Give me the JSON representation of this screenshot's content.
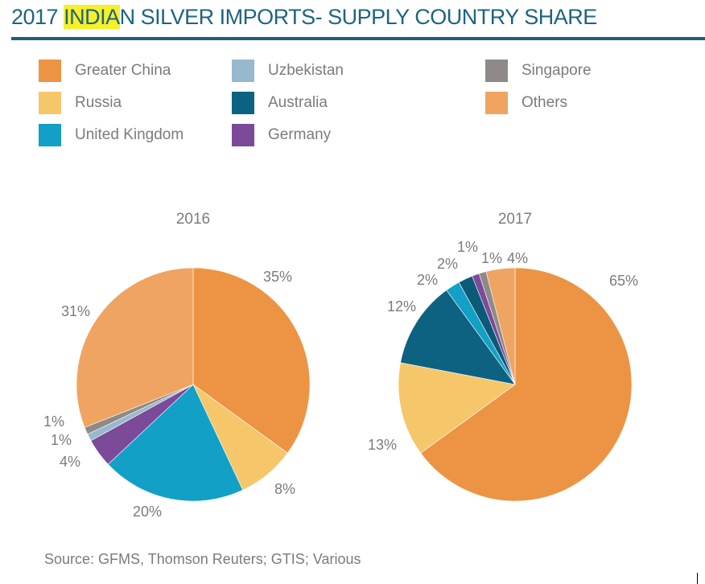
{
  "title": {
    "pre": "2017 ",
    "highlight": "INDIA",
    "post": "N SILVER IMPORTS- SUPPLY COUNTRY SHARE"
  },
  "source": "Source: GFMS, Thomson Reuters; GTIS; Various",
  "chart_data": {
    "type": "pie",
    "title": "2017 INDIAN SILVER IMPORTS- SUPPLY COUNTRY SHARE",
    "legend": [
      {
        "name": "Greater China",
        "color": "#ec9444"
      },
      {
        "name": "Russia",
        "color": "#f6c66a"
      },
      {
        "name": "United Kingdom",
        "color": "#12a0c6"
      },
      {
        "name": "Uzbekistan",
        "color": "#98b9cd"
      },
      {
        "name": "Australia",
        "color": "#0d6282"
      },
      {
        "name": "Germany",
        "color": "#7b4a99"
      },
      {
        "name": "Singapore",
        "color": "#8f8a87"
      },
      {
        "name": "Others",
        "color": "#efa462"
      }
    ],
    "pies": [
      {
        "year": "2016",
        "slices": [
          {
            "name": "Greater China",
            "value": 35,
            "label": "35%"
          },
          {
            "name": "Russia",
            "value": 8,
            "label": "8%"
          },
          {
            "name": "United Kingdom",
            "value": 20,
            "label": "20%"
          },
          {
            "name": "Germany",
            "value": 4,
            "label": "4%"
          },
          {
            "name": "Uzbekistan",
            "value": 1,
            "label": "1%"
          },
          {
            "name": "Singapore",
            "value": 1,
            "label": "1%"
          },
          {
            "name": "Others",
            "value": 31,
            "label": "31%"
          }
        ]
      },
      {
        "year": "2017",
        "slices": [
          {
            "name": "Greater China",
            "value": 65,
            "label": "65%"
          },
          {
            "name": "Russia",
            "value": 13,
            "label": "13%"
          },
          {
            "name": "Australia",
            "value": 12,
            "label": "12%"
          },
          {
            "name": "United Kingdom",
            "value": 2,
            "label": "2%"
          },
          {
            "name": "Australia",
            "value": 2,
            "label": "2%"
          },
          {
            "name": "Germany",
            "value": 1,
            "label": "1%"
          },
          {
            "name": "Singapore",
            "value": 1,
            "label": "1%"
          },
          {
            "name": "Others",
            "value": 4,
            "label": "4%"
          }
        ]
      }
    ]
  }
}
